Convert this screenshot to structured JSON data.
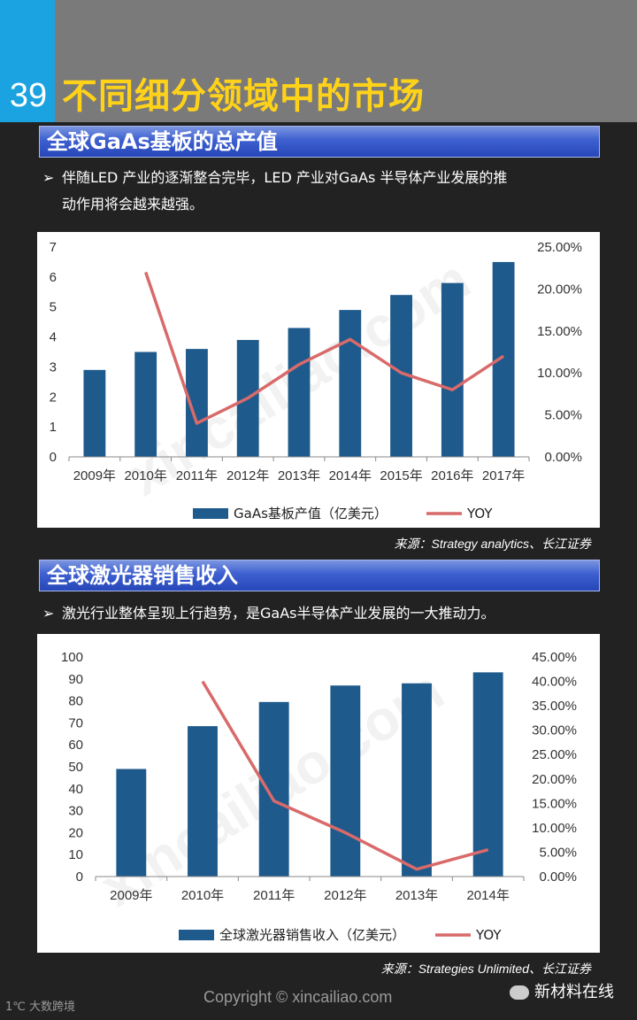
{
  "header": {
    "page_number": "39",
    "title": "不同细分领域中的市场"
  },
  "section1": {
    "title": "全球GaAs基板的总产值",
    "bullet_line1": "伴随LED 产业的逐渐整合完毕，LED 产业对GaAs 半导体产业发展的推",
    "bullet_line2": "动作用将会越来越强。",
    "source": "来源：Strategy analytics、长江证券"
  },
  "section2": {
    "title": "全球激光器销售收入",
    "bullet_line1": "激光行业整体呈现上行趋势，是GaAs半导体产业发展的一大推动力。",
    "source": "来源：Strategies Unlimited、长江证券"
  },
  "footer": {
    "copyright": "Copyright © xincailiao.com",
    "account": "新材料在线",
    "corner_logo": "1℃ 大数跨境"
  },
  "watermark": "xincailiao.com",
  "colors": {
    "bar": "#1e5a8c",
    "line": "#d96a6a",
    "section_bar": "#3d5fd0",
    "title": "#ffd21a"
  },
  "chart_data": [
    {
      "type": "bar",
      "categories": [
        "2009年",
        "2010年",
        "2011年",
        "2012年",
        "2013年",
        "2014年",
        "2015年",
        "2016年",
        "2017年"
      ],
      "series": [
        {
          "name": "GaAs基板产值（亿美元）",
          "type": "bar",
          "axis": "left",
          "values": [
            2.9,
            3.5,
            3.6,
            3.9,
            4.3,
            4.9,
            5.4,
            5.8,
            6.5
          ]
        },
        {
          "name": "YOY",
          "type": "line",
          "axis": "right",
          "values": [
            null,
            0.22,
            0.04,
            0.07,
            0.11,
            0.14,
            0.1,
            0.08,
            0.12
          ]
        }
      ],
      "y_left": {
        "ylim": [
          0,
          7
        ],
        "ticks": [
          "0",
          "1",
          "2",
          "3",
          "4",
          "5",
          "6",
          "7"
        ]
      },
      "y_right": {
        "ylim": [
          0,
          0.25
        ],
        "ticks": [
          "0.00%",
          "5.00%",
          "10.00%",
          "15.00%",
          "20.00%",
          "25.00%"
        ]
      },
      "legend_bar": "GaAs基板产值（亿美元）",
      "legend_line": "YOY",
      "legend_position": "bottom"
    },
    {
      "type": "bar",
      "categories": [
        "2009年",
        "2010年",
        "2011年",
        "2012年",
        "2013年",
        "2014年"
      ],
      "series": [
        {
          "name": "全球激光器销售收入（亿美元）",
          "type": "bar",
          "axis": "left",
          "values": [
            49,
            68.5,
            79.5,
            87,
            88,
            93
          ]
        },
        {
          "name": "YOY",
          "type": "line",
          "axis": "right",
          "values": [
            null,
            0.4,
            0.155,
            0.09,
            0.015,
            0.055
          ]
        }
      ],
      "y_left": {
        "ylim": [
          0,
          100
        ],
        "ticks": [
          "0",
          "10",
          "20",
          "30",
          "40",
          "50",
          "60",
          "70",
          "80",
          "90",
          "100"
        ]
      },
      "y_right": {
        "ylim": [
          0,
          0.45
        ],
        "ticks": [
          "0.00%",
          "5.00%",
          "10.00%",
          "15.00%",
          "20.00%",
          "25.00%",
          "30.00%",
          "35.00%",
          "40.00%",
          "45.00%"
        ]
      },
      "legend_bar": "全球激光器销售收入（亿美元）",
      "legend_line": "YOY",
      "legend_position": "bottom"
    }
  ]
}
